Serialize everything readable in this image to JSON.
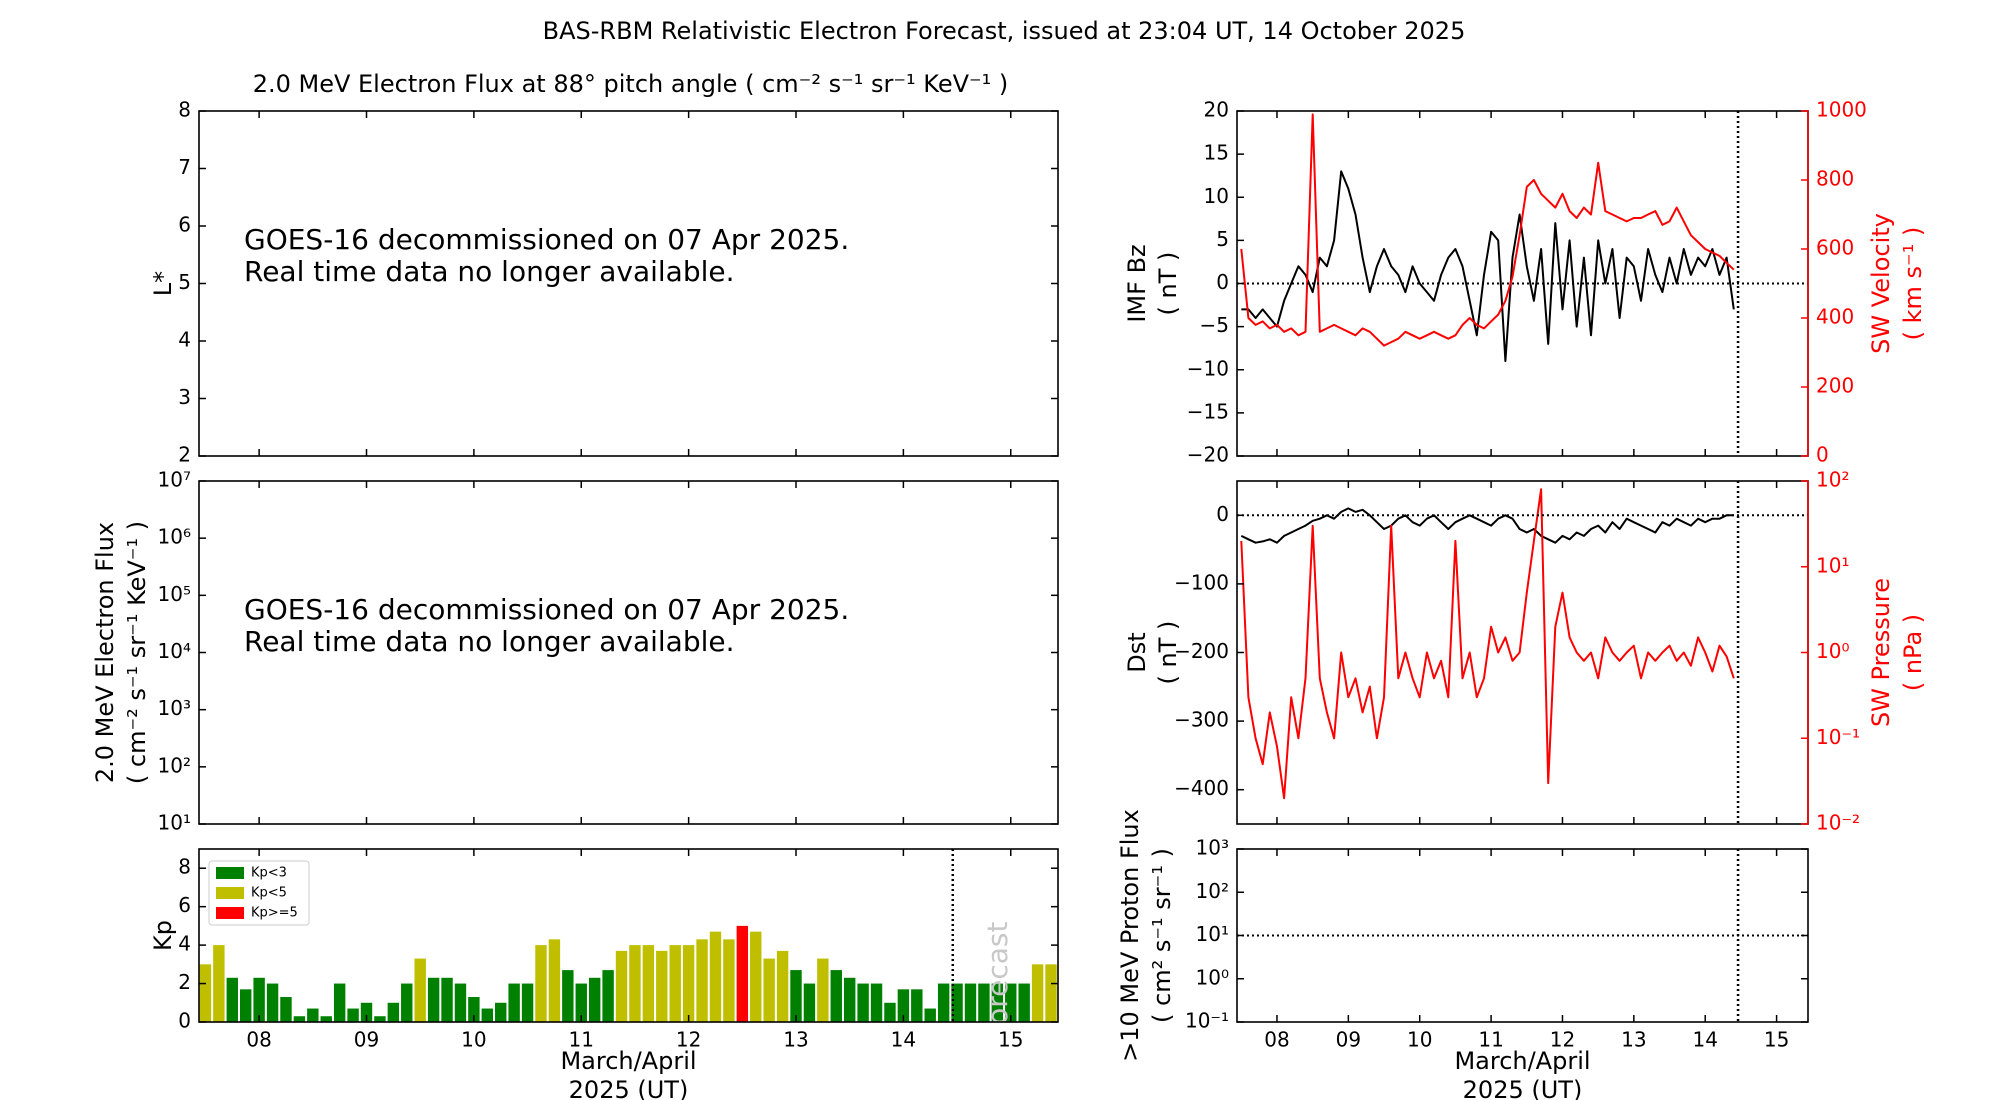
{
  "title": "BAS-RBM Relativistic Electron Forecast, issued at 23:04 UT, 14 October 2025",
  "chart_data": [
    {
      "type": "blank",
      "title": "2.0 MeV Electron Flux at 88° pitch angle ( cm⁻² s⁻¹ sr⁻¹ KeV⁻¹ )",
      "ylabel": [
        "L*"
      ],
      "ylim": [
        2,
        8
      ],
      "yticks": [
        2,
        3,
        4,
        5,
        6,
        7,
        8
      ],
      "annotation": [
        "GOES-16 decommissioned on 07 Apr 2025.",
        "Real time data no longer available."
      ]
    },
    {
      "type": "blank",
      "ylabel": [
        "2.0 MeV Electron Flux",
        "( cm⁻² s⁻¹ sr⁻¹ KeV⁻¹ )"
      ],
      "ylog": true,
      "ylim": [
        10,
        10000000
      ],
      "yticks": [
        {
          "value": 10,
          "label": "10¹"
        },
        {
          "value": 100,
          "label": "10²"
        },
        {
          "value": 1000,
          "label": "10³"
        },
        {
          "value": 10000,
          "label": "10⁴"
        },
        {
          "value": 100000,
          "label": "10⁵"
        },
        {
          "value": 1000000,
          "label": "10⁶"
        },
        {
          "value": 10000000,
          "label": "10⁷"
        }
      ],
      "annotation": [
        "GOES-16 decommissioned on 07 Apr 2025.",
        "Real time data no longer available."
      ]
    },
    {
      "type": "bar",
      "ylabel": [
        "Kp"
      ],
      "ylim": [
        0,
        9
      ],
      "yticks": [
        0,
        2,
        4,
        6,
        8
      ],
      "xlim": [
        7.44,
        15.44
      ],
      "xticks": [
        {
          "value": 8,
          "label": "08"
        },
        {
          "value": 9,
          "label": "09"
        },
        10,
        11,
        12,
        13,
        14,
        15
      ],
      "xlabel": [
        "March/April",
        "2025 (UT)"
      ],
      "legend": "upper left",
      "vlines": [
        14.46
      ],
      "annotation": "Forecast",
      "x": [
        7.5,
        7.625,
        7.75,
        7.875,
        8,
        8.125,
        8.25,
        8.375,
        8.5,
        8.625,
        8.75,
        8.875,
        9,
        9.125,
        9.25,
        9.375,
        9.5,
        9.625,
        9.75,
        9.875,
        10,
        10.125,
        10.25,
        10.375,
        10.5,
        10.625,
        10.75,
        10.875,
        11,
        11.125,
        11.25,
        11.375,
        11.5,
        11.625,
        11.75,
        11.875,
        12,
        12.125,
        12.25,
        12.375,
        12.5,
        12.625,
        12.75,
        12.875,
        13,
        13.125,
        13.25,
        13.375,
        13.5,
        13.625,
        13.75,
        13.875,
        14,
        14.125,
        14.25,
        14.375,
        14.5,
        14.625,
        14.75,
        14.875,
        15,
        15.125,
        15.25,
        15.375
      ],
      "series": [
        {
          "name": "Kp<3",
          "color": "#008000",
          "values": [
            null,
            null,
            2.3,
            1.7,
            2.3,
            2.0,
            1.3,
            0.3,
            0.7,
            0.3,
            2.0,
            0.7,
            1.0,
            0.3,
            1.0,
            2.0,
            null,
            2.3,
            2.3,
            2.0,
            1.3,
            0.7,
            1.0,
            2.0,
            2.0,
            null,
            null,
            2.7,
            2.0,
            2.3,
            2.7,
            null,
            null,
            null,
            null,
            null,
            null,
            null,
            null,
            null,
            null,
            null,
            null,
            null,
            2.7,
            2.0,
            null,
            2.7,
            2.3,
            2.0,
            2.0,
            1.0,
            1.7,
            1.7,
            0.7,
            2.0,
            2.0,
            2.0,
            2.0,
            2.0,
            2.0,
            2.0,
            null,
            null
          ]
        },
        {
          "name": "Kp<5",
          "color": "#bfbf00",
          "values": [
            3.0,
            4.0,
            null,
            null,
            null,
            null,
            null,
            null,
            null,
            null,
            null,
            null,
            null,
            null,
            null,
            null,
            3.3,
            null,
            null,
            null,
            null,
            null,
            null,
            null,
            null,
            4.0,
            4.3,
            null,
            null,
            null,
            null,
            3.7,
            4.0,
            4.0,
            3.7,
            4.0,
            4.0,
            4.3,
            4.7,
            4.3,
            null,
            4.7,
            3.3,
            3.7,
            null,
            null,
            3.3,
            null,
            null,
            null,
            null,
            null,
            null,
            null,
            null,
            null,
            null,
            null,
            null,
            null,
            null,
            null,
            3.0,
            3.0
          ]
        },
        {
          "name": "Kp>=5",
          "color": "#ff0000",
          "values": [
            null,
            null,
            null,
            null,
            null,
            null,
            null,
            null,
            null,
            null,
            null,
            null,
            null,
            null,
            null,
            null,
            null,
            null,
            null,
            null,
            null,
            null,
            null,
            null,
            null,
            null,
            null,
            null,
            null,
            null,
            null,
            null,
            null,
            null,
            null,
            null,
            null,
            null,
            null,
            null,
            5.0,
            null,
            null,
            null,
            null,
            null,
            null,
            null,
            null,
            null,
            null,
            null,
            null,
            null,
            null,
            null,
            null,
            null,
            null,
            null,
            null,
            null,
            null,
            null
          ]
        }
      ]
    },
    {
      "type": "line",
      "ylabel": [
        "IMF Bz",
        "( nT )"
      ],
      "y2label": [
        "SW Velocity",
        "( km s⁻¹ )"
      ],
      "ylim": [
        -20,
        20
      ],
      "yticks": [
        {
          "value": -20,
          "label": "−20"
        },
        {
          "value": -15,
          "label": "−15"
        },
        {
          "value": -10,
          "label": "−10"
        },
        {
          "value": -5,
          "label": "−5"
        },
        0,
        5,
        10,
        15,
        20
      ],
      "y2lim": [
        0,
        1000
      ],
      "y2ticks": [
        0,
        200,
        400,
        600,
        800,
        1000
      ],
      "y2color": "#ff0000",
      "hlines": [
        0
      ],
      "vlines": [
        14.46
      ],
      "x": [
        7.5,
        7.6,
        7.7,
        7.8,
        7.9,
        8.0,
        8.1,
        8.2,
        8.3,
        8.4,
        8.5,
        8.6,
        8.7,
        8.8,
        8.9,
        9.0,
        9.1,
        9.2,
        9.3,
        9.4,
        9.5,
        9.6,
        9.7,
        9.8,
        9.9,
        10.0,
        10.1,
        10.2,
        10.3,
        10.4,
        10.5,
        10.6,
        10.7,
        10.8,
        10.9,
        11.0,
        11.1,
        11.2,
        11.3,
        11.4,
        11.5,
        11.6,
        11.7,
        11.8,
        11.9,
        12.0,
        12.1,
        12.2,
        12.3,
        12.4,
        12.5,
        12.6,
        12.7,
        12.8,
        12.9,
        13.0,
        13.1,
        13.2,
        13.3,
        13.4,
        13.5,
        13.6,
        13.7,
        13.8,
        13.9,
        14.0,
        14.1,
        14.2,
        14.3,
        14.4
      ],
      "series": [
        {
          "color": "#000000",
          "values": [
            -3,
            -3,
            -4,
            -3,
            -4,
            -5,
            -2,
            0,
            2,
            1,
            -1,
            3,
            2,
            5,
            13,
            11,
            8,
            3,
            -1,
            2,
            4,
            2,
            1,
            -1,
            2,
            0,
            -1,
            -2,
            1,
            3,
            4,
            2,
            -2,
            -6,
            1,
            6,
            5,
            -9,
            3,
            8,
            2,
            -2,
            4,
            -7,
            7,
            -3,
            5,
            -5,
            3,
            -6,
            5,
            0,
            4,
            -4,
            3,
            2,
            -2,
            4,
            1,
            -1,
            3,
            0,
            4,
            1,
            3,
            2,
            4,
            1,
            3,
            -3
          ]
        },
        {
          "color": "#ff0000",
          "axis": "y2",
          "values": [
            600,
            400,
            380,
            390,
            370,
            380,
            360,
            370,
            350,
            360,
            990,
            360,
            370,
            380,
            370,
            360,
            350,
            370,
            360,
            340,
            320,
            330,
            340,
            360,
            350,
            340,
            350,
            360,
            350,
            340,
            350,
            380,
            400,
            380,
            370,
            390,
            410,
            450,
            520,
            640,
            780,
            800,
            760,
            740,
            720,
            760,
            710,
            690,
            720,
            700,
            850,
            710,
            700,
            690,
            680,
            690,
            690,
            700,
            710,
            670,
            680,
            720,
            680,
            640,
            620,
            600,
            590,
            580,
            560,
            540
          ]
        }
      ]
    },
    {
      "type": "line",
      "ylabel": [
        "Dst",
        "( nT )"
      ],
      "y2label": [
        "SW Pressure",
        "( nPa )"
      ],
      "ylim": [
        -450,
        50
      ],
      "yticks": [
        {
          "value": -400,
          "label": "−400"
        },
        {
          "value": -300,
          "label": "−300"
        },
        {
          "value": -200,
          "label": "−200"
        },
        {
          "value": -100,
          "label": "−100"
        },
        0
      ],
      "y2log": true,
      "y2lim": [
        0.01,
        100
      ],
      "y2ticks": [
        {
          "value": 0.01,
          "label": "10⁻²"
        },
        {
          "value": 0.1,
          "label": "10⁻¹"
        },
        {
          "value": 1,
          "label": "10⁰"
        },
        {
          "value": 10,
          "label": "10¹"
        },
        {
          "value": 100,
          "label": "10²"
        }
      ],
      "y2color": "#ff0000",
      "hlines": [
        0
      ],
      "vlines": [
        14.46
      ],
      "x": [
        7.5,
        7.6,
        7.7,
        7.8,
        7.9,
        8.0,
        8.1,
        8.2,
        8.3,
        8.4,
        8.5,
        8.6,
        8.7,
        8.8,
        8.9,
        9.0,
        9.1,
        9.2,
        9.3,
        9.4,
        9.5,
        9.6,
        9.7,
        9.8,
        9.9,
        10.0,
        10.1,
        10.2,
        10.3,
        10.4,
        10.5,
        10.6,
        10.7,
        10.8,
        10.9,
        11.0,
        11.1,
        11.2,
        11.3,
        11.4,
        11.5,
        11.6,
        11.7,
        11.8,
        11.9,
        12.0,
        12.1,
        12.2,
        12.3,
        12.4,
        12.5,
        12.6,
        12.7,
        12.8,
        12.9,
        13.0,
        13.1,
        13.2,
        13.3,
        13.4,
        13.5,
        13.6,
        13.7,
        13.8,
        13.9,
        14.0,
        14.1,
        14.2,
        14.3,
        14.4
      ],
      "series": [
        {
          "color": "#000000",
          "values": [
            -30,
            -35,
            -40,
            -38,
            -35,
            -40,
            -30,
            -25,
            -20,
            -15,
            -8,
            -5,
            0,
            -5,
            5,
            10,
            5,
            8,
            0,
            -10,
            -20,
            -15,
            -5,
            0,
            -10,
            -15,
            -5,
            0,
            -10,
            -20,
            -10,
            -5,
            0,
            -5,
            -10,
            -15,
            -5,
            0,
            -5,
            -20,
            -25,
            -20,
            -30,
            -35,
            -40,
            -30,
            -35,
            -25,
            -30,
            -20,
            -15,
            -25,
            -10,
            -20,
            -5,
            -10,
            -15,
            -20,
            -25,
            -10,
            -15,
            -5,
            -10,
            -15,
            -5,
            -10,
            -5,
            -5,
            0,
            0
          ]
        },
        {
          "color": "#ff0000",
          "axis": "y2",
          "values": [
            20,
            0.3,
            0.1,
            0.05,
            0.2,
            0.08,
            0.02,
            0.3,
            0.1,
            0.5,
            30,
            0.5,
            0.2,
            0.1,
            1,
            0.3,
            0.5,
            0.2,
            0.4,
            0.1,
            0.3,
            30,
            0.5,
            1,
            0.5,
            0.3,
            1,
            0.5,
            0.8,
            0.3,
            20,
            0.5,
            1,
            0.3,
            0.5,
            2,
            1,
            1.5,
            0.8,
            1,
            5,
            20,
            80,
            0.03,
            2,
            5,
            1.5,
            1,
            0.8,
            1,
            0.5,
            1.5,
            1,
            0.8,
            1,
            1.2,
            0.5,
            1,
            0.8,
            1,
            1.2,
            0.8,
            1,
            0.7,
            1.5,
            1,
            0.6,
            1.2,
            0.9,
            0.5
          ]
        }
      ]
    },
    {
      "type": "line",
      "ylabel": [
        ">10 MeV Proton Flux",
        "( cm² s⁻¹ sr⁻¹ )"
      ],
      "ylog": true,
      "ylim": [
        0.1,
        1000
      ],
      "yticks": [
        {
          "value": 0.1,
          "label": "10⁻¹"
        },
        {
          "value": 1,
          "label": "10⁰"
        },
        {
          "value": 10,
          "label": "10¹"
        },
        {
          "value": 100,
          "label": "10²"
        },
        {
          "value": 1000,
          "label": "10³"
        }
      ],
      "hlines": [
        10
      ],
      "vlines": [
        14.46
      ],
      "series": [],
      "xlim": [
        7.44,
        15.44
      ],
      "xticks": [
        {
          "value": 8,
          "label": "08"
        },
        {
          "value": 9,
          "label": "09"
        },
        10,
        11,
        12,
        13,
        14,
        15
      ],
      "xlabel": [
        "March/April",
        "2025 (UT)"
      ]
    }
  ]
}
